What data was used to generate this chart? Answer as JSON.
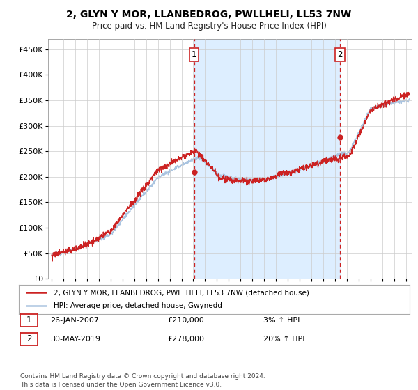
{
  "title": "2, GLYN Y MOR, LLANBEDROG, PWLLHELI, LL53 7NW",
  "subtitle": "Price paid vs. HM Land Registry's House Price Index (HPI)",
  "ylim": [
    0,
    470000
  ],
  "yticks": [
    0,
    50000,
    100000,
    150000,
    200000,
    250000,
    300000,
    350000,
    400000,
    450000
  ],
  "ytick_labels": [
    "£0",
    "£50K",
    "£100K",
    "£150K",
    "£200K",
    "£250K",
    "£300K",
    "£350K",
    "£400K",
    "£450K"
  ],
  "xlim_start": 1994.7,
  "xlim_end": 2025.5,
  "xticks": [
    1995,
    1996,
    1997,
    1998,
    1999,
    2000,
    2001,
    2002,
    2003,
    2004,
    2005,
    2006,
    2007,
    2008,
    2009,
    2010,
    2011,
    2012,
    2013,
    2014,
    2015,
    2016,
    2017,
    2018,
    2019,
    2020,
    2021,
    2022,
    2023,
    2024,
    2025
  ],
  "sale1_x": 2007.07,
  "sale1_y": 210000,
  "sale2_x": 2019.42,
  "sale2_y": 278000,
  "hpi_color": "#aac4e0",
  "price_color": "#cc2222",
  "vline_color": "#cc2222",
  "shade_color": "#ddeeff",
  "legend_label_price": "2, GLYN Y MOR, LLANBEDROG, PWLLHELI, LL53 7NW (detached house)",
  "legend_label_hpi": "HPI: Average price, detached house, Gwynedd",
  "table_rows": [
    {
      "num": "1",
      "date": "26-JAN-2007",
      "price": "£210,000",
      "hpi": "3% ↑ HPI"
    },
    {
      "num": "2",
      "date": "30-MAY-2019",
      "price": "£278,000",
      "hpi": "20% ↑ HPI"
    }
  ],
  "footnote": "Contains HM Land Registry data © Crown copyright and database right 2024.\nThis data is licensed under the Open Government Licence v3.0.",
  "background_color": "#ffffff",
  "grid_color": "#cccccc"
}
